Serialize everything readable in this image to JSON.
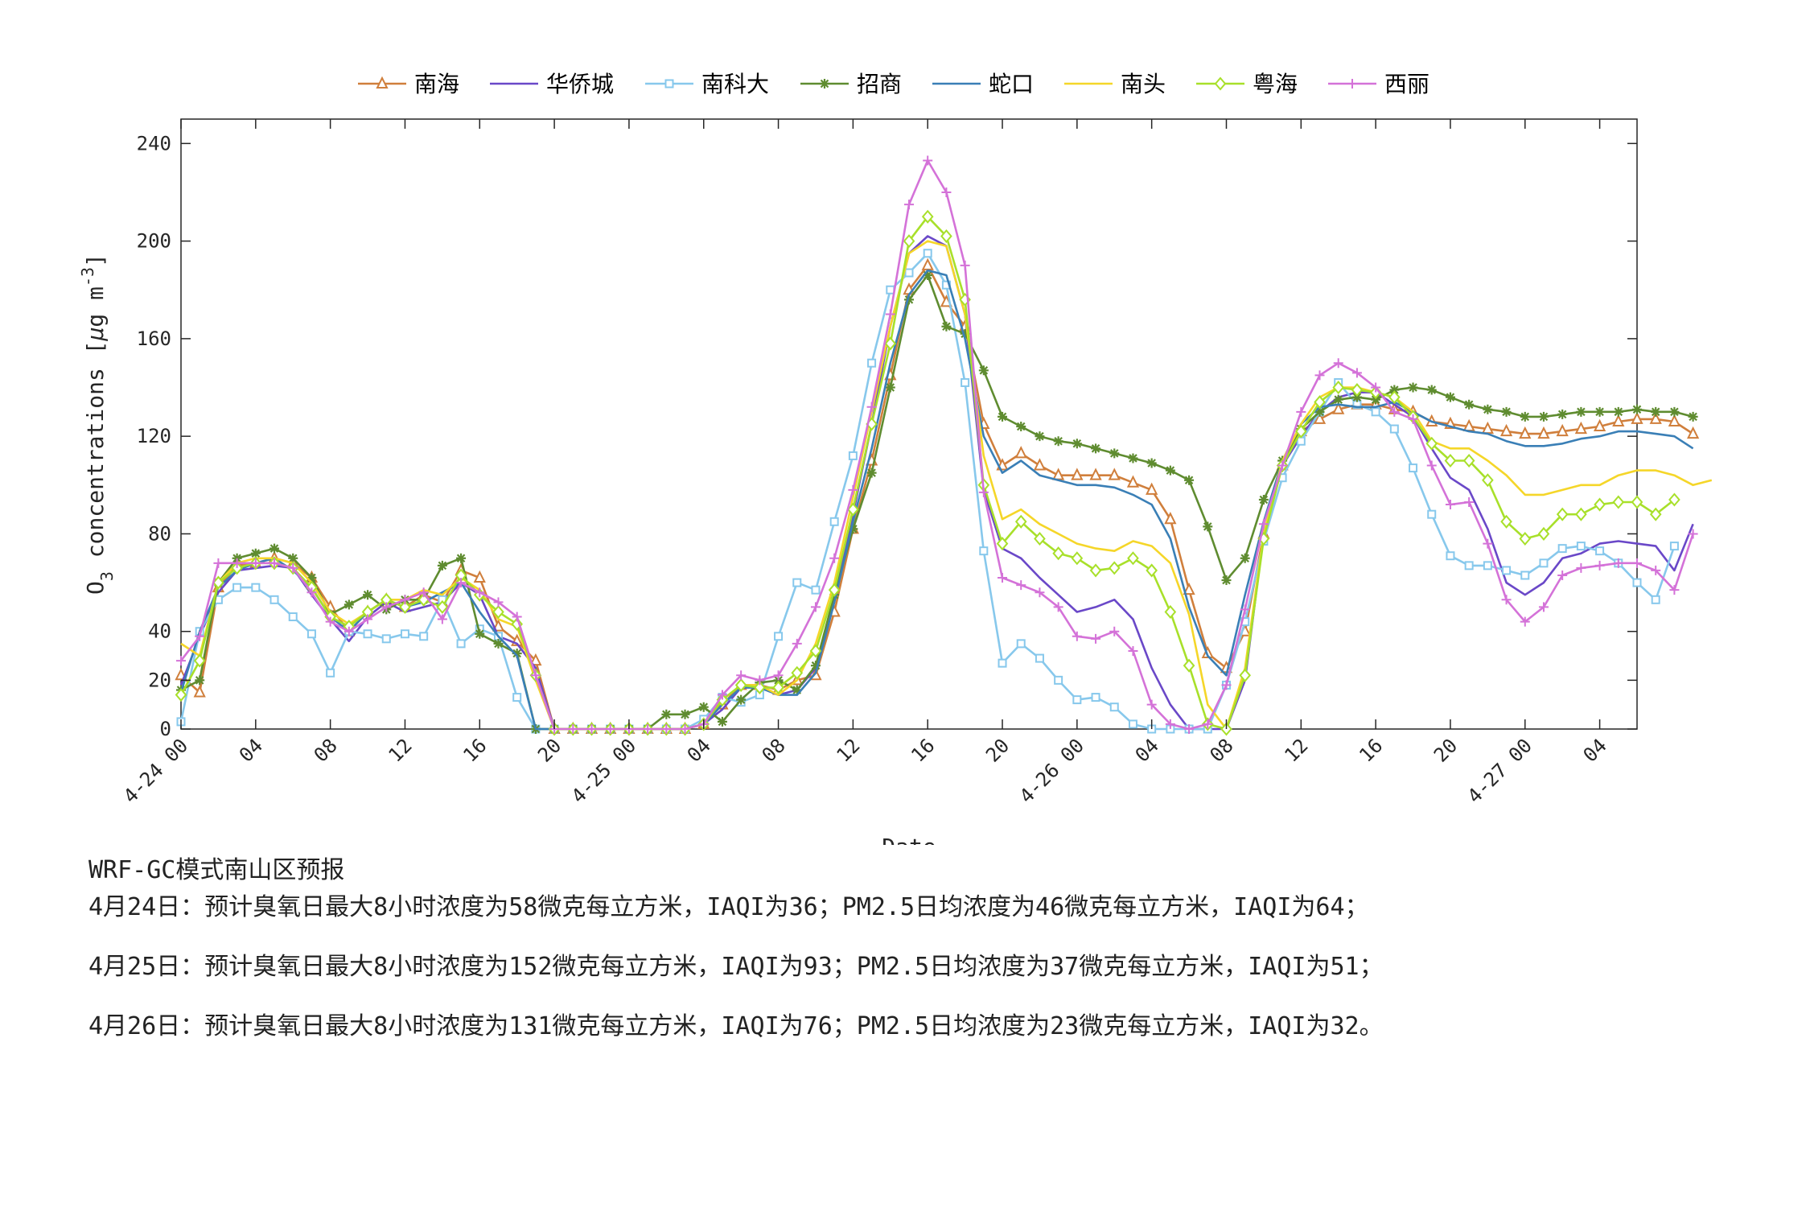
{
  "chart_data": {
    "type": "line",
    "xlabel": "Date",
    "ylabel": "O3 concentrations [μg m-3]",
    "ylabel_parts": {
      "o": "O",
      "sub3": "3",
      "main": " concentrations [",
      "mu": "μ",
      "g": "g m",
      "sup": "-3",
      "close": "]"
    },
    "ylim": [
      0,
      250
    ],
    "yticks": [
      0,
      20,
      40,
      80,
      120,
      160,
      200,
      240
    ],
    "ytick_labels": [
      "0",
      "20",
      "40",
      "80",
      "120",
      "160",
      "200",
      "240"
    ],
    "xlim": [
      0,
      78
    ],
    "xticks": [
      0,
      4,
      8,
      12,
      16,
      20,
      24,
      28,
      32,
      36,
      40,
      44,
      48,
      52,
      56,
      60,
      64,
      68,
      72,
      76
    ],
    "xtick_labels": [
      "4-24 00",
      "04",
      "08",
      "12",
      "16",
      "20",
      "4-25 00",
      "04",
      "08",
      "12",
      "16",
      "20",
      "4-26 00",
      "04",
      "08",
      "12",
      "16",
      "20",
      "4-27 00",
      "04"
    ],
    "x_unit": "hours since 4-24 00",
    "grid": false,
    "legend_position": "top",
    "series": [
      {
        "name": "南海",
        "color": "#d07f3c",
        "marker": "triangle",
        "values": [
          22,
          15,
          58,
          67,
          68,
          70,
          68,
          62,
          50,
          40,
          48,
          53,
          50,
          55,
          52,
          65,
          62,
          42,
          36,
          28,
          0,
          0,
          0,
          0,
          0,
          0,
          0,
          0,
          2,
          10,
          18,
          18,
          16,
          20,
          22,
          48,
          82,
          110,
          145,
          180,
          190,
          175,
          165,
          125,
          108,
          113,
          108,
          104,
          104,
          104,
          104,
          101,
          98,
          86,
          57,
          31,
          25,
          40,
          80,
          108,
          122,
          127,
          131,
          133,
          133,
          131,
          130,
          126,
          125,
          124,
          123,
          122,
          121,
          121,
          122,
          123,
          124,
          126,
          127,
          127,
          126,
          121
        ]
      },
      {
        "name": "华侨城",
        "color": "#6a48c8",
        "marker": "none",
        "values": [
          18,
          38,
          56,
          65,
          66,
          67,
          66,
          55,
          45,
          36,
          46,
          52,
          48,
          50,
          52,
          60,
          55,
          38,
          35,
          25,
          0,
          0,
          0,
          0,
          0,
          0,
          0,
          0,
          2,
          8,
          17,
          17,
          14,
          16,
          25,
          55,
          88,
          125,
          165,
          195,
          202,
          198,
          170,
          98,
          74,
          70,
          62,
          55,
          48,
          50,
          53,
          45,
          25,
          10,
          0,
          0,
          0,
          20,
          80,
          108,
          120,
          130,
          136,
          138,
          138,
          133,
          128,
          115,
          103,
          98,
          82,
          60,
          55,
          60,
          70,
          72,
          76,
          77,
          76,
          75,
          65,
          84
        ]
      },
      {
        "name": "南科大",
        "color": "#87c8ec",
        "marker": "square",
        "values": [
          3,
          40,
          53,
          58,
          58,
          53,
          46,
          39,
          23,
          40,
          39,
          37,
          39,
          38,
          53,
          35,
          41,
          38,
          13,
          0,
          0,
          0,
          0,
          0,
          0,
          0,
          0,
          0,
          4,
          13,
          11,
          14,
          38,
          60,
          57,
          85,
          112,
          150,
          180,
          187,
          195,
          182,
          142,
          73,
          27,
          35,
          29,
          20,
          12,
          13,
          9,
          2,
          0,
          0,
          0,
          0,
          18,
          44,
          77,
          103,
          118,
          130,
          142,
          133,
          130,
          123,
          107,
          88,
          71,
          67,
          67,
          65,
          63,
          68,
          74,
          75,
          73,
          68,
          60,
          53,
          75
        ]
      },
      {
        "name": "招商",
        "color": "#5f8c30",
        "marker": "star",
        "values": [
          16,
          20,
          60,
          70,
          72,
          74,
          70,
          62,
          47,
          51,
          55,
          49,
          53,
          53,
          67,
          70,
          39,
          35,
          31,
          0,
          0,
          0,
          0,
          0,
          0,
          0,
          6,
          6,
          9,
          3,
          12,
          19,
          20,
          16,
          26,
          55,
          82,
          105,
          140,
          176,
          186,
          165,
          162,
          147,
          128,
          124,
          120,
          118,
          117,
          115,
          113,
          111,
          109,
          106,
          102,
          83,
          61,
          70,
          94,
          110,
          123,
          130,
          135,
          136,
          135,
          139,
          140,
          139,
          136,
          133,
          131,
          130,
          128,
          128,
          129,
          130,
          130,
          130,
          131,
          130,
          130,
          128
        ]
      },
      {
        "name": "蛇口",
        "color": "#3a7fb6",
        "marker": "none",
        "values": [
          15,
          40,
          58,
          65,
          68,
          70,
          65,
          58,
          46,
          40,
          48,
          53,
          50,
          52,
          56,
          60,
          48,
          38,
          30,
          0,
          0,
          0,
          0,
          0,
          0,
          0,
          0,
          0,
          2,
          10,
          17,
          17,
          14,
          14,
          23,
          52,
          85,
          115,
          150,
          178,
          188,
          186,
          160,
          120,
          105,
          110,
          104,
          102,
          100,
          100,
          99,
          96,
          92,
          78,
          50,
          30,
          22,
          55,
          85,
          110,
          125,
          132,
          133,
          132,
          132,
          134,
          130,
          126,
          124,
          122,
          121,
          118,
          116,
          116,
          117,
          119,
          120,
          122,
          122,
          121,
          120,
          115
        ]
      },
      {
        "name": "南头",
        "color": "#f5d629",
        "marker": "none",
        "values": [
          35,
          30,
          60,
          68,
          70,
          70,
          68,
          60,
          48,
          43,
          48,
          53,
          53,
          57,
          55,
          62,
          57,
          45,
          42,
          20,
          0,
          0,
          0,
          0,
          0,
          0,
          0,
          0,
          2,
          12,
          18,
          18,
          14,
          20,
          35,
          60,
          95,
          130,
          165,
          195,
          200,
          198,
          170,
          112,
          86,
          90,
          84,
          80,
          76,
          74,
          73,
          77,
          75,
          68,
          47,
          10,
          0,
          25,
          80,
          110,
          125,
          136,
          140,
          140,
          138,
          136,
          130,
          118,
          115,
          115,
          110,
          104,
          96,
          96,
          98,
          100,
          100,
          104,
          106,
          106,
          104,
          100,
          102
        ]
      },
      {
        "name": "粤海",
        "color": "#a8e02a",
        "marker": "diamond",
        "values": [
          14,
          28,
          60,
          66,
          68,
          68,
          66,
          58,
          46,
          42,
          48,
          53,
          50,
          53,
          50,
          63,
          55,
          48,
          43,
          22,
          0,
          0,
          0,
          0,
          0,
          0,
          0,
          0,
          2,
          12,
          18,
          17,
          17,
          23,
          32,
          57,
          90,
          125,
          158,
          200,
          210,
          202,
          176,
          100,
          76,
          85,
          78,
          72,
          70,
          65,
          66,
          70,
          65,
          48,
          26,
          2,
          0,
          22,
          78,
          108,
          122,
          134,
          140,
          139,
          138,
          136,
          128,
          117,
          110,
          110,
          102,
          85,
          78,
          80,
          88,
          88,
          92,
          93,
          93,
          88,
          94
        ]
      },
      {
        "name": "西丽",
        "color": "#d472d8",
        "marker": "plus",
        "values": [
          28,
          38,
          68,
          68,
          68,
          68,
          66,
          56,
          44,
          40,
          45,
          50,
          53,
          56,
          45,
          60,
          56,
          52,
          46,
          22,
          0,
          0,
          0,
          0,
          0,
          0,
          0,
          0,
          2,
          14,
          22,
          20,
          22,
          35,
          50,
          70,
          98,
          132,
          170,
          215,
          233,
          220,
          190,
          97,
          62,
          59,
          56,
          50,
          38,
          37,
          40,
          32,
          10,
          2,
          0,
          2,
          18,
          49,
          84,
          108,
          130,
          145,
          150,
          146,
          140,
          130,
          127,
          108,
          92,
          93,
          76,
          53,
          44,
          50,
          63,
          66,
          67,
          68,
          68,
          65,
          57,
          80
        ]
      }
    ]
  },
  "forecast": {
    "title": "WRF-GC模式南山区预报",
    "lines": [
      "4月24日：预计臭氧日最大8小时浓度为58微克每立方米，IAQI为36；PM2.5日均浓度为46微克每立方米，IAQI为64；",
      "4月25日：预计臭氧日最大8小时浓度为152微克每立方米，IAQI为93；PM2.5日均浓度为37微克每立方米，IAQI为51；",
      "4月26日：预计臭氧日最大8小时浓度为131微克每立方米，IAQI为76；PM2.5日均浓度为23微克每立方米，IAQI为32。"
    ]
  }
}
